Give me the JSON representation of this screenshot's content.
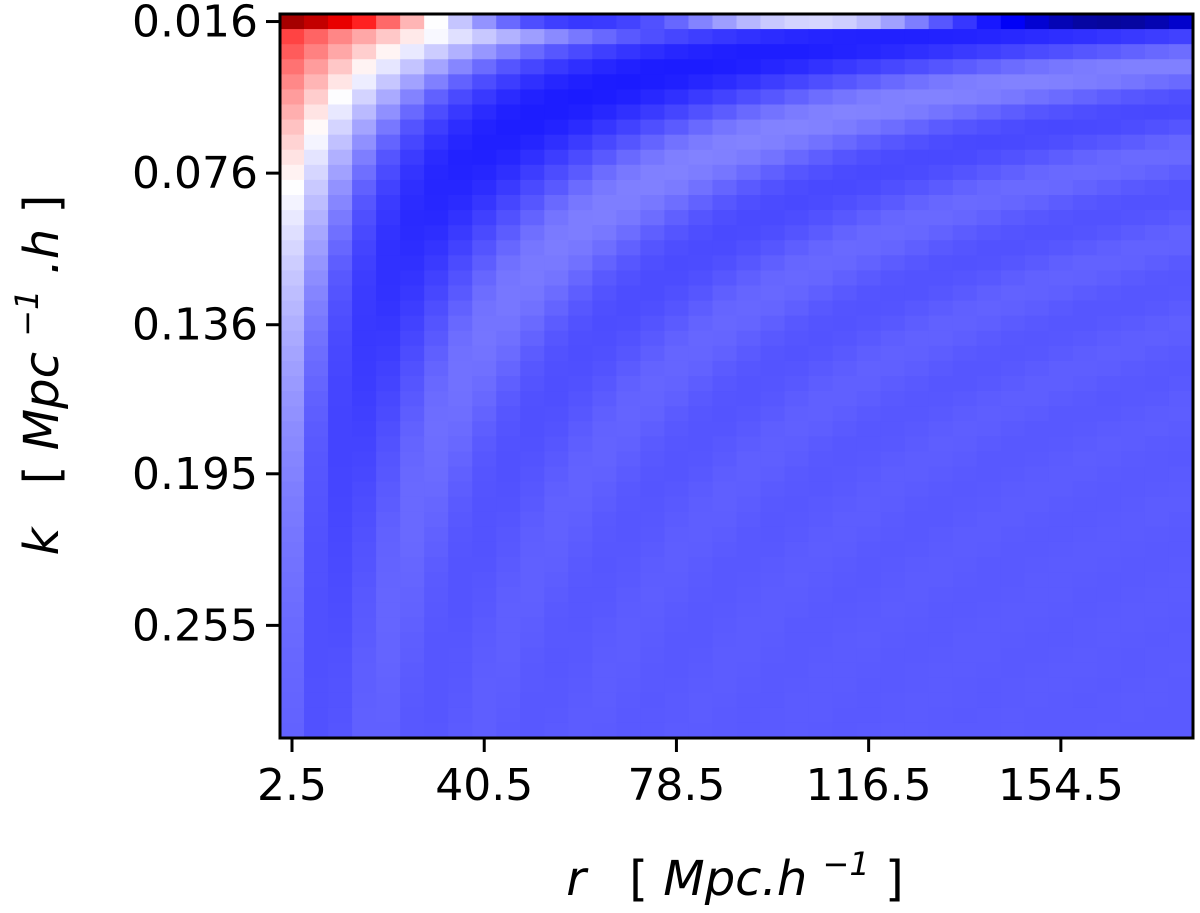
{
  "chart_data": {
    "type": "heatmap",
    "title": "",
    "xlabel_parts": {
      "symbol": "r",
      "bracket_open": "[",
      "unit": "Mpc.h",
      "exponent": "−1",
      "bracket_close": "]"
    },
    "ylabel_parts": {
      "symbol": "k",
      "bracket_open": "[",
      "unit": "Mpc",
      "exponent": "−1",
      "unit_tail": ".h",
      "bracket_close": "]"
    },
    "x_ticks": [
      2.5,
      40.5,
      78.5,
      116.5,
      154.5
    ],
    "x_tick_labels": [
      "2.5",
      "40.5",
      "78.5",
      "116.5",
      "154.5"
    ],
    "y_ticks": [
      0.016,
      0.076,
      0.136,
      0.195,
      0.255
    ],
    "y_tick_labels": [
      "0.016",
      "0.076",
      "0.136",
      "0.195",
      "0.255"
    ],
    "x_cell_step": 4.75,
    "y_cell_step": 0.00597,
    "n_cols": 38,
    "n_rows": 48,
    "colormap": [
      "#0b0b50",
      "#0000ff",
      "#5a5aff",
      "#ffffff",
      "#ff0000",
      "#7a0000"
    ],
    "colormap_stops": [
      0.0,
      0.2,
      0.35,
      0.55,
      0.8,
      1.0
    ],
    "colorbar": false,
    "grid": false,
    "legend": "none"
  }
}
